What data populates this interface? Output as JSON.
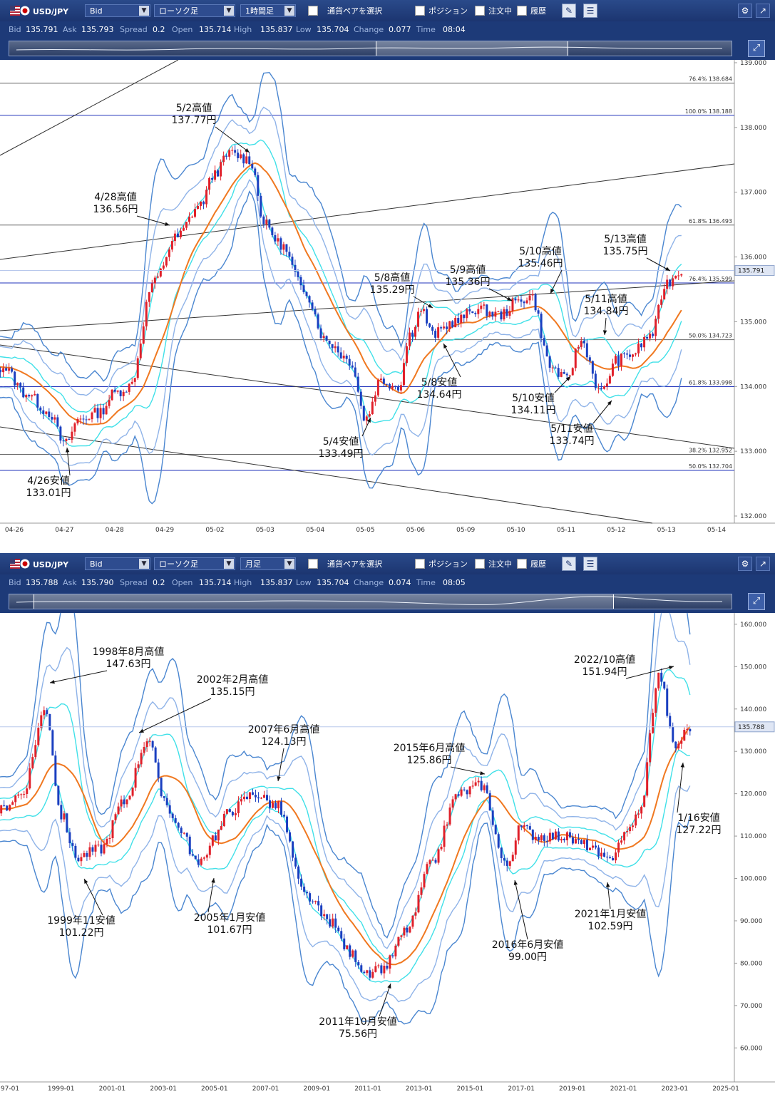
{
  "panels": [
    {
      "toolbar": {
        "pair": "USD/JPY",
        "price_type": "Bid",
        "chart_type": "ローソク足",
        "timeframe": "1時間足",
        "select_pair": "通貨ペアを選択",
        "position": "ポジション",
        "orders": "注文中",
        "history": "履歴"
      },
      "quote": {
        "bid_label": "Bid",
        "bid": "135.791",
        "ask_label": "Ask",
        "ask": "135.793",
        "spread_label": "Spread",
        "spread": "0.2",
        "open_label": "Open",
        "open": "135.714",
        "high_label": "High",
        "high": "135.837",
        "low_label": "Low",
        "low": "135.704",
        "change_label": "Change",
        "change": "0.077",
        "time_label": "Time",
        "time": "08:04"
      },
      "chart_data": {
        "type": "candlestick",
        "x": [
          "04-26",
          "04-27",
          "04-28",
          "04-29",
          "05-02",
          "05-03",
          "05-04",
          "05-05",
          "05-06",
          "05-09",
          "05-10",
          "05-11",
          "05-12",
          "05-13",
          "05-14"
        ],
        "ylim": [
          132.0,
          139.0
        ],
        "yticks": [
          "139.000",
          "138.000",
          "137.000",
          "136.000",
          "135.000",
          "134.000",
          "133.000",
          "132.000"
        ],
        "current_price": "135.791",
        "indicators": [
          "Bollinger Bands ±1σ ±2σ ±3σ",
          "Moving Average"
        ],
        "close_path": [
          [
            "04-26",
            134.3
          ],
          [
            "04-26",
            133.9
          ],
          [
            "04-27",
            133.6
          ],
          [
            "04-27",
            133.1
          ],
          [
            "04-27",
            133.5
          ],
          [
            "04-28",
            133.6
          ],
          [
            "04-28",
            133.9
          ],
          [
            "04-28",
            134.0
          ],
          [
            "04-29",
            135.6
          ],
          [
            "04-29",
            136.3
          ],
          [
            "05-02",
            136.8
          ],
          [
            "05-02",
            137.3
          ],
          [
            "05-02",
            137.6
          ],
          [
            "05-03",
            137.5
          ],
          [
            "05-03",
            136.5
          ],
          [
            "05-03",
            136.2
          ],
          [
            "05-04",
            135.5
          ],
          [
            "05-04",
            134.7
          ],
          [
            "05-05",
            134.4
          ],
          [
            "05-05",
            133.5
          ],
          [
            "05-05",
            134.1
          ],
          [
            "05-06",
            134.0
          ],
          [
            "05-06",
            134.8
          ],
          [
            "05-06",
            135.2
          ],
          [
            "05-06",
            134.8
          ],
          [
            "05-09",
            135.0
          ],
          [
            "05-09",
            135.2
          ],
          [
            "05-10",
            135.1
          ],
          [
            "05-10",
            135.3
          ],
          [
            "05-10",
            135.4
          ],
          [
            "05-11",
            134.3
          ],
          [
            "05-11",
            134.1
          ],
          [
            "05-11",
            134.7
          ],
          [
            "05-12",
            133.9
          ],
          [
            "05-12",
            134.4
          ],
          [
            "05-12",
            134.5
          ],
          [
            "05-13",
            134.8
          ],
          [
            "05-13",
            135.6
          ],
          [
            "05-13",
            135.79
          ]
        ],
        "horizontal_levels": [
          {
            "label": "76.4%",
            "value": "138.684"
          },
          {
            "label": "100.0%",
            "value": "138.188"
          },
          {
            "label": "61.8%",
            "value": "136.493"
          },
          {
            "label": "76.4%",
            "value": "135.599"
          },
          {
            "label": "50.0%",
            "value": "134.723"
          },
          {
            "label": "61.8%",
            "value": "133.998"
          },
          {
            "label": "38.2%",
            "value": "132.952"
          },
          {
            "label": "50.0%",
            "value": "132.704"
          }
        ],
        "annotations": [
          {
            "text": "5/2高値",
            "value": "137.77円"
          },
          {
            "text": "4/28高値",
            "value": "136.56円"
          },
          {
            "text": "5/8高値",
            "value": "135.29円"
          },
          {
            "text": "5/9高値",
            "value": "135.36円"
          },
          {
            "text": "5/10高値",
            "value": "135.46円"
          },
          {
            "text": "5/13高値",
            "value": "135.75円"
          },
          {
            "text": "5/11高値",
            "value": "134.84円"
          },
          {
            "text": "5/8安値",
            "value": "134.64円"
          },
          {
            "text": "5/10安値",
            "value": "134.11円"
          },
          {
            "text": "5/11安値",
            "value": "133.74円"
          },
          {
            "text": "5/4安値",
            "value": "133.49円"
          },
          {
            "text": "4/26安値",
            "value": "133.01円"
          }
        ]
      }
    },
    {
      "toolbar": {
        "pair": "USD/JPY",
        "price_type": "Bid",
        "chart_type": "ローソク足",
        "timeframe": "月足",
        "select_pair": "通貨ペアを選択",
        "position": "ポジション",
        "orders": "注文中",
        "history": "履歴"
      },
      "quote": {
        "bid_label": "Bid",
        "bid": "135.788",
        "ask_label": "Ask",
        "ask": "135.790",
        "spread_label": "Spread",
        "spread": "0.2",
        "open_label": "Open",
        "open": "135.714",
        "high_label": "High",
        "high": "135.837",
        "low_label": "Low",
        "low": "135.704",
        "change_label": "Change",
        "change": "0.074",
        "time_label": "Time",
        "time": "08:05"
      },
      "chart_data": {
        "type": "candlestick",
        "x": [
          "97-01",
          "1999-01",
          "2001-01",
          "2003-01",
          "2005-01",
          "2007-01",
          "2009-01",
          "2011-01",
          "2013-01",
          "2015-01",
          "2017-01",
          "2019-01",
          "2021-01",
          "2023-01",
          "2025-01"
        ],
        "ylim": [
          55.0,
          162.0
        ],
        "yticks": [
          "160.000",
          "150.000",
          "140.000",
          "130.000",
          "120.000",
          "110.000",
          "100.000",
          "90.000",
          "80.000",
          "70.000",
          "60.000"
        ],
        "current_price": "135.788",
        "indicators": [
          "Bollinger Bands ±1σ ±2σ ±3σ",
          "Moving Average"
        ],
        "close_path": [
          [
            "97-01",
            116
          ],
          [
            "97-01",
            120
          ],
          [
            "1999-01",
            140
          ],
          [
            "1999-01",
            115
          ],
          [
            "1999-01",
            105
          ],
          [
            "2001-01",
            107
          ],
          [
            "2001-01",
            118
          ],
          [
            "2003-01",
            133
          ],
          [
            "2003-01",
            119
          ],
          [
            "2003-01",
            112
          ],
          [
            "2005-01",
            103
          ],
          [
            "2005-01",
            110
          ],
          [
            "2005-01",
            116
          ],
          [
            "2007-01",
            120
          ],
          [
            "2007-01",
            117
          ],
          [
            "2009-01",
            96
          ],
          [
            "2009-01",
            90
          ],
          [
            "2011-01",
            82
          ],
          [
            "2011-01",
            77
          ],
          [
            "2011-01",
            79
          ],
          [
            "2013-01",
            88
          ],
          [
            "2013-01",
            103
          ],
          [
            "2015-01",
            120
          ],
          [
            "2015-01",
            122
          ],
          [
            "2017-01",
            103
          ],
          [
            "2017-01",
            112
          ],
          [
            "2017-01",
            110
          ],
          [
            "2019-01",
            110
          ],
          [
            "2019-01",
            108
          ],
          [
            "2021-01",
            104
          ],
          [
            "2021-01",
            110
          ],
          [
            "2021-01",
            115
          ],
          [
            "2023-01",
            148
          ],
          [
            "2023-01",
            131
          ],
          [
            "2023-01",
            135.79
          ]
        ],
        "annotations": [
          {
            "text": "1998年8月高値",
            "value": "147.63円"
          },
          {
            "text": "2002年2月高値",
            "value": "135.15円"
          },
          {
            "text": "2007年6月高値",
            "value": "124.13円"
          },
          {
            "text": "2015年6月高値",
            "value": "125.86円"
          },
          {
            "text": "2022/10高値",
            "value": "151.94円"
          },
          {
            "text": "1/16安値",
            "value": "127.22円"
          },
          {
            "text": "1999年11安値",
            "value": "101.22円"
          },
          {
            "text": "2005年1月安値",
            "value": "101.67円"
          },
          {
            "text": "2011年10月安値",
            "value": "75.56円"
          },
          {
            "text": "2016年6月安値",
            "value": "99.00円"
          },
          {
            "text": "2021年1月安値",
            "value": "102.59円"
          }
        ]
      }
    }
  ],
  "colors": {
    "candle_up": "#e0202a",
    "candle_down": "#1a3fc0",
    "ma": "#f07820",
    "band1": "#40e0e8",
    "band2": "#8fb3e8",
    "band3": "#4a86d0",
    "level_blue": "#2233bb",
    "level_gray": "#666666"
  }
}
